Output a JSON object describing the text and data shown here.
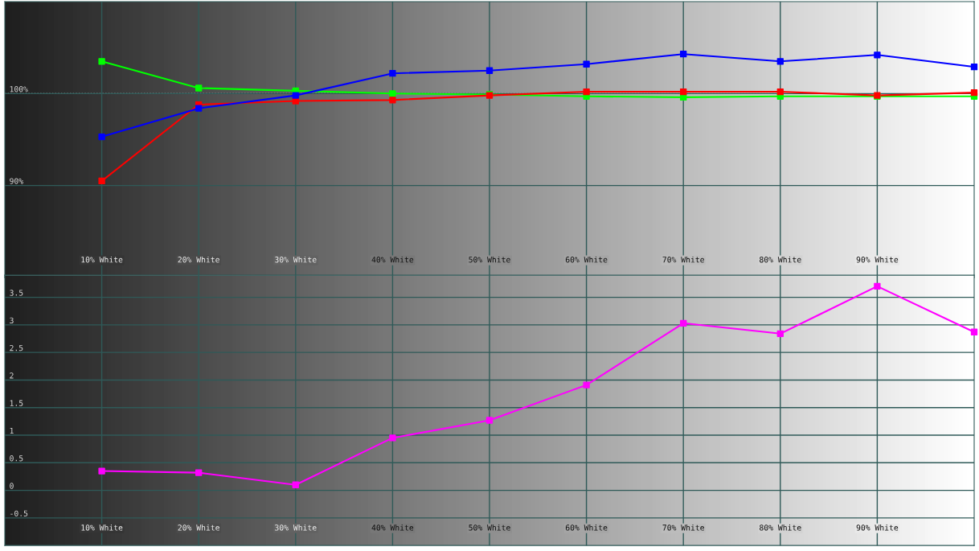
{
  "chart_data": [
    {
      "type": "line",
      "marker": "square",
      "grid": true,
      "xlim": [
        0,
        100
      ],
      "xticks": [
        {
          "value": 10,
          "label": "10% White"
        },
        {
          "value": 20,
          "label": "20% White"
        },
        {
          "value": 30,
          "label": "30% White"
        },
        {
          "value": 40,
          "label": "40% White"
        },
        {
          "value": 50,
          "label": "50% White"
        },
        {
          "value": 60,
          "label": "60% White"
        },
        {
          "value": 70,
          "label": "70% White"
        },
        {
          "value": 80,
          "label": "80% White"
        },
        {
          "value": 90,
          "label": "90% White"
        }
      ],
      "x": [
        10,
        20,
        30,
        40,
        50,
        60,
        70,
        80,
        90,
        100
      ],
      "ylim": [
        80,
        110
      ],
      "yticks": [
        {
          "value": 90,
          "label": "90%"
        },
        {
          "value": 100,
          "label": "100%"
        }
      ],
      "ref_lines": [
        {
          "axis": "y",
          "value": 100,
          "color": "#ffffff",
          "line_style": "dotted"
        }
      ],
      "series": [
        {
          "color": "#00ff00",
          "values": [
            103.5,
            100.6,
            100.3,
            100.0,
            99.9,
            99.7,
            99.6,
            99.7,
            99.7,
            99.7
          ]
        },
        {
          "color": "#ff0000",
          "values": [
            90.5,
            98.8,
            99.2,
            99.3,
            99.8,
            100.2,
            100.2,
            100.2,
            99.8,
            100.1
          ]
        },
        {
          "color": "#0000ff",
          "values": [
            95.3,
            98.4,
            99.8,
            102.2,
            102.5,
            103.2,
            104.3,
            103.5,
            104.2,
            102.9
          ]
        }
      ]
    },
    {
      "type": "line",
      "marker": "square",
      "grid": true,
      "xlim": [
        0,
        100
      ],
      "xticks": [
        {
          "value": 10,
          "label": "10% White"
        },
        {
          "value": 20,
          "label": "20% White"
        },
        {
          "value": 30,
          "label": "30% White"
        },
        {
          "value": 40,
          "label": "40% White"
        },
        {
          "value": 50,
          "label": "50% White"
        },
        {
          "value": 60,
          "label": "60% White"
        },
        {
          "value": 70,
          "label": "70% White"
        },
        {
          "value": 80,
          "label": "80% White"
        },
        {
          "value": 90,
          "label": "90% White"
        }
      ],
      "x": [
        10,
        20,
        30,
        40,
        50,
        60,
        70,
        80,
        90,
        100
      ],
      "ylim": [
        -1,
        3.9
      ],
      "yticks": [
        -0.5,
        0,
        0.5,
        1,
        1.5,
        2,
        2.5,
        3,
        3.5
      ],
      "series": [
        {
          "color": "#ff00ff",
          "values": [
            0.35,
            0.32,
            0.1,
            0.95,
            1.27,
            1.91,
            3.03,
            2.84,
            3.7,
            2.87
          ]
        }
      ]
    }
  ]
}
